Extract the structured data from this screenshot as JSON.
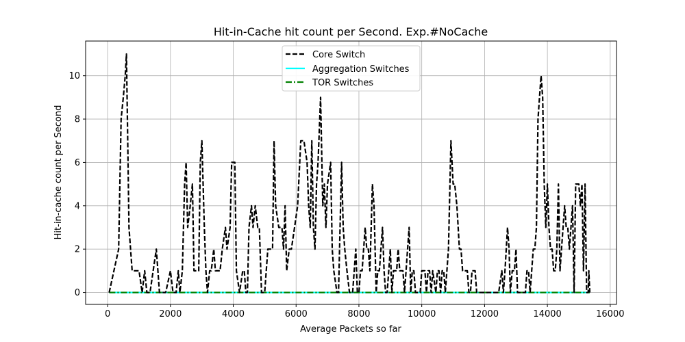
{
  "chart_data": {
    "type": "line",
    "title": "Hit-in-Cache hit count per Second. Exp.#NoCache",
    "xlabel": "Average Packets so far",
    "ylabel": "Hit-in-cache count per Second",
    "xlim": [
      -700,
      16200
    ],
    "ylim": [
      -0.55,
      11.6
    ],
    "xticks": [
      0,
      2000,
      4000,
      6000,
      8000,
      10000,
      12000,
      14000,
      16000
    ],
    "yticks": [
      0,
      2,
      4,
      6,
      8,
      10
    ],
    "grid": true,
    "legend_position": "top-center",
    "series": [
      {
        "name": "Core Switch",
        "color": "#000000",
        "style": "dashed",
        "points": [
          [
            50,
            0
          ],
          [
            200,
            1
          ],
          [
            350,
            2
          ],
          [
            430,
            8
          ],
          [
            500,
            9
          ],
          [
            560,
            10
          ],
          [
            600,
            11
          ],
          [
            680,
            3
          ],
          [
            780,
            1
          ],
          [
            900,
            1
          ],
          [
            1000,
            1
          ],
          [
            1100,
            0
          ],
          [
            1180,
            1
          ],
          [
            1250,
            0
          ],
          [
            1350,
            0
          ],
          [
            1450,
            1
          ],
          [
            1550,
            2
          ],
          [
            1650,
            0
          ],
          [
            1750,
            0
          ],
          [
            1850,
            0
          ],
          [
            2000,
            1
          ],
          [
            2080,
            0
          ],
          [
            2180,
            0
          ],
          [
            2250,
            1
          ],
          [
            2300,
            0
          ],
          [
            2380,
            1
          ],
          [
            2450,
            5
          ],
          [
            2500,
            6
          ],
          [
            2550,
            3
          ],
          [
            2630,
            4
          ],
          [
            2700,
            5
          ],
          [
            2750,
            1
          ],
          [
            2850,
            1
          ],
          [
            2900,
            1
          ],
          [
            2950,
            6
          ],
          [
            3000,
            7
          ],
          [
            3080,
            3
          ],
          [
            3130,
            1
          ],
          [
            3180,
            0
          ],
          [
            3250,
            1
          ],
          [
            3300,
            1
          ],
          [
            3380,
            2
          ],
          [
            3430,
            1
          ],
          [
            3500,
            1
          ],
          [
            3580,
            1
          ],
          [
            3650,
            2
          ],
          [
            3750,
            3
          ],
          [
            3800,
            2
          ],
          [
            3900,
            3
          ],
          [
            3950,
            6
          ],
          [
            4000,
            6
          ],
          [
            4050,
            6
          ],
          [
            4100,
            1
          ],
          [
            4200,
            0
          ],
          [
            4300,
            1
          ],
          [
            4350,
            1
          ],
          [
            4400,
            0
          ],
          [
            4450,
            0
          ],
          [
            4500,
            3
          ],
          [
            4580,
            4
          ],
          [
            4630,
            3
          ],
          [
            4700,
            4
          ],
          [
            4780,
            3
          ],
          [
            4830,
            3
          ],
          [
            4900,
            0
          ],
          [
            5000,
            0
          ],
          [
            5050,
            1
          ],
          [
            5100,
            2
          ],
          [
            5150,
            2
          ],
          [
            5200,
            2
          ],
          [
            5250,
            2
          ],
          [
            5300,
            7
          ],
          [
            5350,
            4
          ],
          [
            5450,
            3
          ],
          [
            5550,
            3
          ],
          [
            5600,
            2
          ],
          [
            5650,
            4
          ],
          [
            5700,
            1
          ],
          [
            5780,
            2
          ],
          [
            5850,
            2
          ],
          [
            5950,
            3
          ],
          [
            6050,
            4
          ],
          [
            6150,
            7
          ],
          [
            6250,
            7
          ],
          [
            6350,
            6
          ],
          [
            6400,
            4
          ],
          [
            6450,
            3
          ],
          [
            6500,
            7
          ],
          [
            6550,
            3
          ],
          [
            6600,
            2
          ],
          [
            6650,
            5
          ],
          [
            6700,
            6
          ],
          [
            6780,
            9
          ],
          [
            6850,
            4
          ],
          [
            6900,
            5
          ],
          [
            6950,
            3
          ],
          [
            7000,
            5
          ],
          [
            7100,
            6
          ],
          [
            7150,
            2
          ],
          [
            7200,
            1
          ],
          [
            7300,
            0
          ],
          [
            7350,
            0
          ],
          [
            7450,
            6
          ],
          [
            7500,
            3
          ],
          [
            7550,
            2
          ],
          [
            7620,
            1
          ],
          [
            7700,
            0
          ],
          [
            7750,
            0
          ],
          [
            7800,
            0
          ],
          [
            7850,
            1
          ],
          [
            7900,
            2
          ],
          [
            7950,
            0
          ],
          [
            8000,
            0
          ],
          [
            8050,
            1
          ],
          [
            8100,
            1
          ],
          [
            8200,
            3
          ],
          [
            8250,
            2
          ],
          [
            8300,
            2
          ],
          [
            8350,
            1
          ],
          [
            8430,
            5
          ],
          [
            8480,
            4
          ],
          [
            8550,
            0
          ],
          [
            8600,
            1
          ],
          [
            8650,
            1
          ],
          [
            8700,
            2
          ],
          [
            8750,
            3
          ],
          [
            8800,
            1
          ],
          [
            8850,
            0
          ],
          [
            8900,
            0
          ],
          [
            8950,
            1
          ],
          [
            9000,
            2
          ],
          [
            9050,
            0
          ],
          [
            9100,
            1
          ],
          [
            9150,
            1
          ],
          [
            9200,
            1
          ],
          [
            9250,
            2
          ],
          [
            9300,
            1
          ],
          [
            9350,
            1
          ],
          [
            9400,
            1
          ],
          [
            9450,
            0
          ],
          [
            9500,
            1
          ],
          [
            9550,
            2
          ],
          [
            9600,
            3
          ],
          [
            9650,
            0
          ],
          [
            9700,
            1
          ],
          [
            9750,
            1
          ],
          [
            9800,
            0
          ],
          [
            9850,
            0
          ],
          [
            9900,
            0
          ],
          [
            9950,
            0
          ],
          [
            10000,
            1
          ],
          [
            10050,
            1
          ],
          [
            10100,
            1
          ],
          [
            10150,
            0
          ],
          [
            10200,
            1
          ],
          [
            10250,
            1
          ],
          [
            10300,
            0
          ],
          [
            10350,
            1
          ],
          [
            10450,
            0
          ],
          [
            10500,
            1
          ],
          [
            10550,
            1
          ],
          [
            10600,
            0
          ],
          [
            10650,
            1
          ],
          [
            10700,
            1
          ],
          [
            10750,
            0
          ],
          [
            10800,
            1
          ],
          [
            10850,
            2
          ],
          [
            10930,
            7
          ],
          [
            11000,
            5
          ],
          [
            11050,
            5
          ],
          [
            11120,
            4
          ],
          [
            11200,
            2
          ],
          [
            11250,
            2
          ],
          [
            11300,
            1
          ],
          [
            11350,
            1
          ],
          [
            11400,
            1
          ],
          [
            11450,
            1
          ],
          [
            11500,
            0
          ],
          [
            11550,
            0
          ],
          [
            11600,
            1
          ],
          [
            11650,
            1
          ],
          [
            11700,
            1
          ],
          [
            11750,
            0
          ],
          [
            11850,
            0
          ],
          [
            12000,
            0
          ],
          [
            12100,
            0
          ],
          [
            12200,
            0
          ],
          [
            12300,
            0
          ],
          [
            12400,
            0
          ],
          [
            12450,
            0
          ],
          [
            12550,
            1
          ],
          [
            12600,
            0
          ],
          [
            12650,
            1
          ],
          [
            12730,
            3
          ],
          [
            12780,
            2
          ],
          [
            12820,
            0
          ],
          [
            12880,
            1
          ],
          [
            12950,
            1
          ],
          [
            13000,
            2
          ],
          [
            13050,
            0
          ],
          [
            13100,
            0
          ],
          [
            13200,
            0
          ],
          [
            13300,
            0
          ],
          [
            13350,
            1
          ],
          [
            13400,
            1
          ],
          [
            13450,
            0
          ],
          [
            13500,
            1
          ],
          [
            13550,
            2
          ],
          [
            13600,
            2
          ],
          [
            13650,
            3
          ],
          [
            13700,
            8
          ],
          [
            13750,
            9
          ],
          [
            13800,
            10
          ],
          [
            13850,
            9
          ],
          [
            13900,
            5
          ],
          [
            13950,
            3
          ],
          [
            14000,
            5
          ],
          [
            14050,
            3
          ],
          [
            14100,
            2
          ],
          [
            14150,
            2
          ],
          [
            14200,
            1
          ],
          [
            14250,
            1
          ],
          [
            14300,
            2
          ],
          [
            14350,
            5
          ],
          [
            14400,
            1
          ],
          [
            14450,
            2
          ],
          [
            14500,
            3
          ],
          [
            14550,
            4
          ],
          [
            14600,
            3
          ],
          [
            14650,
            3
          ],
          [
            14700,
            2
          ],
          [
            14750,
            3
          ],
          [
            14800,
            4
          ],
          [
            14850,
            0
          ],
          [
            14900,
            5
          ],
          [
            14950,
            5
          ],
          [
            15000,
            5
          ],
          [
            15050,
            4
          ],
          [
            15100,
            5
          ],
          [
            15150,
            1
          ],
          [
            15200,
            5
          ],
          [
            15250,
            0
          ],
          [
            15300,
            0
          ],
          [
            15320,
            1
          ],
          [
            15350,
            0
          ]
        ]
      },
      {
        "name": "Aggregation Switches",
        "color": "#00ffff",
        "style": "solid",
        "points": [
          [
            50,
            0
          ],
          [
            15350,
            0
          ]
        ]
      },
      {
        "name": "TOR Switches",
        "color": "#008000",
        "style": "dashdot",
        "points": [
          [
            50,
            0
          ],
          [
            15350,
            0
          ]
        ]
      }
    ]
  }
}
